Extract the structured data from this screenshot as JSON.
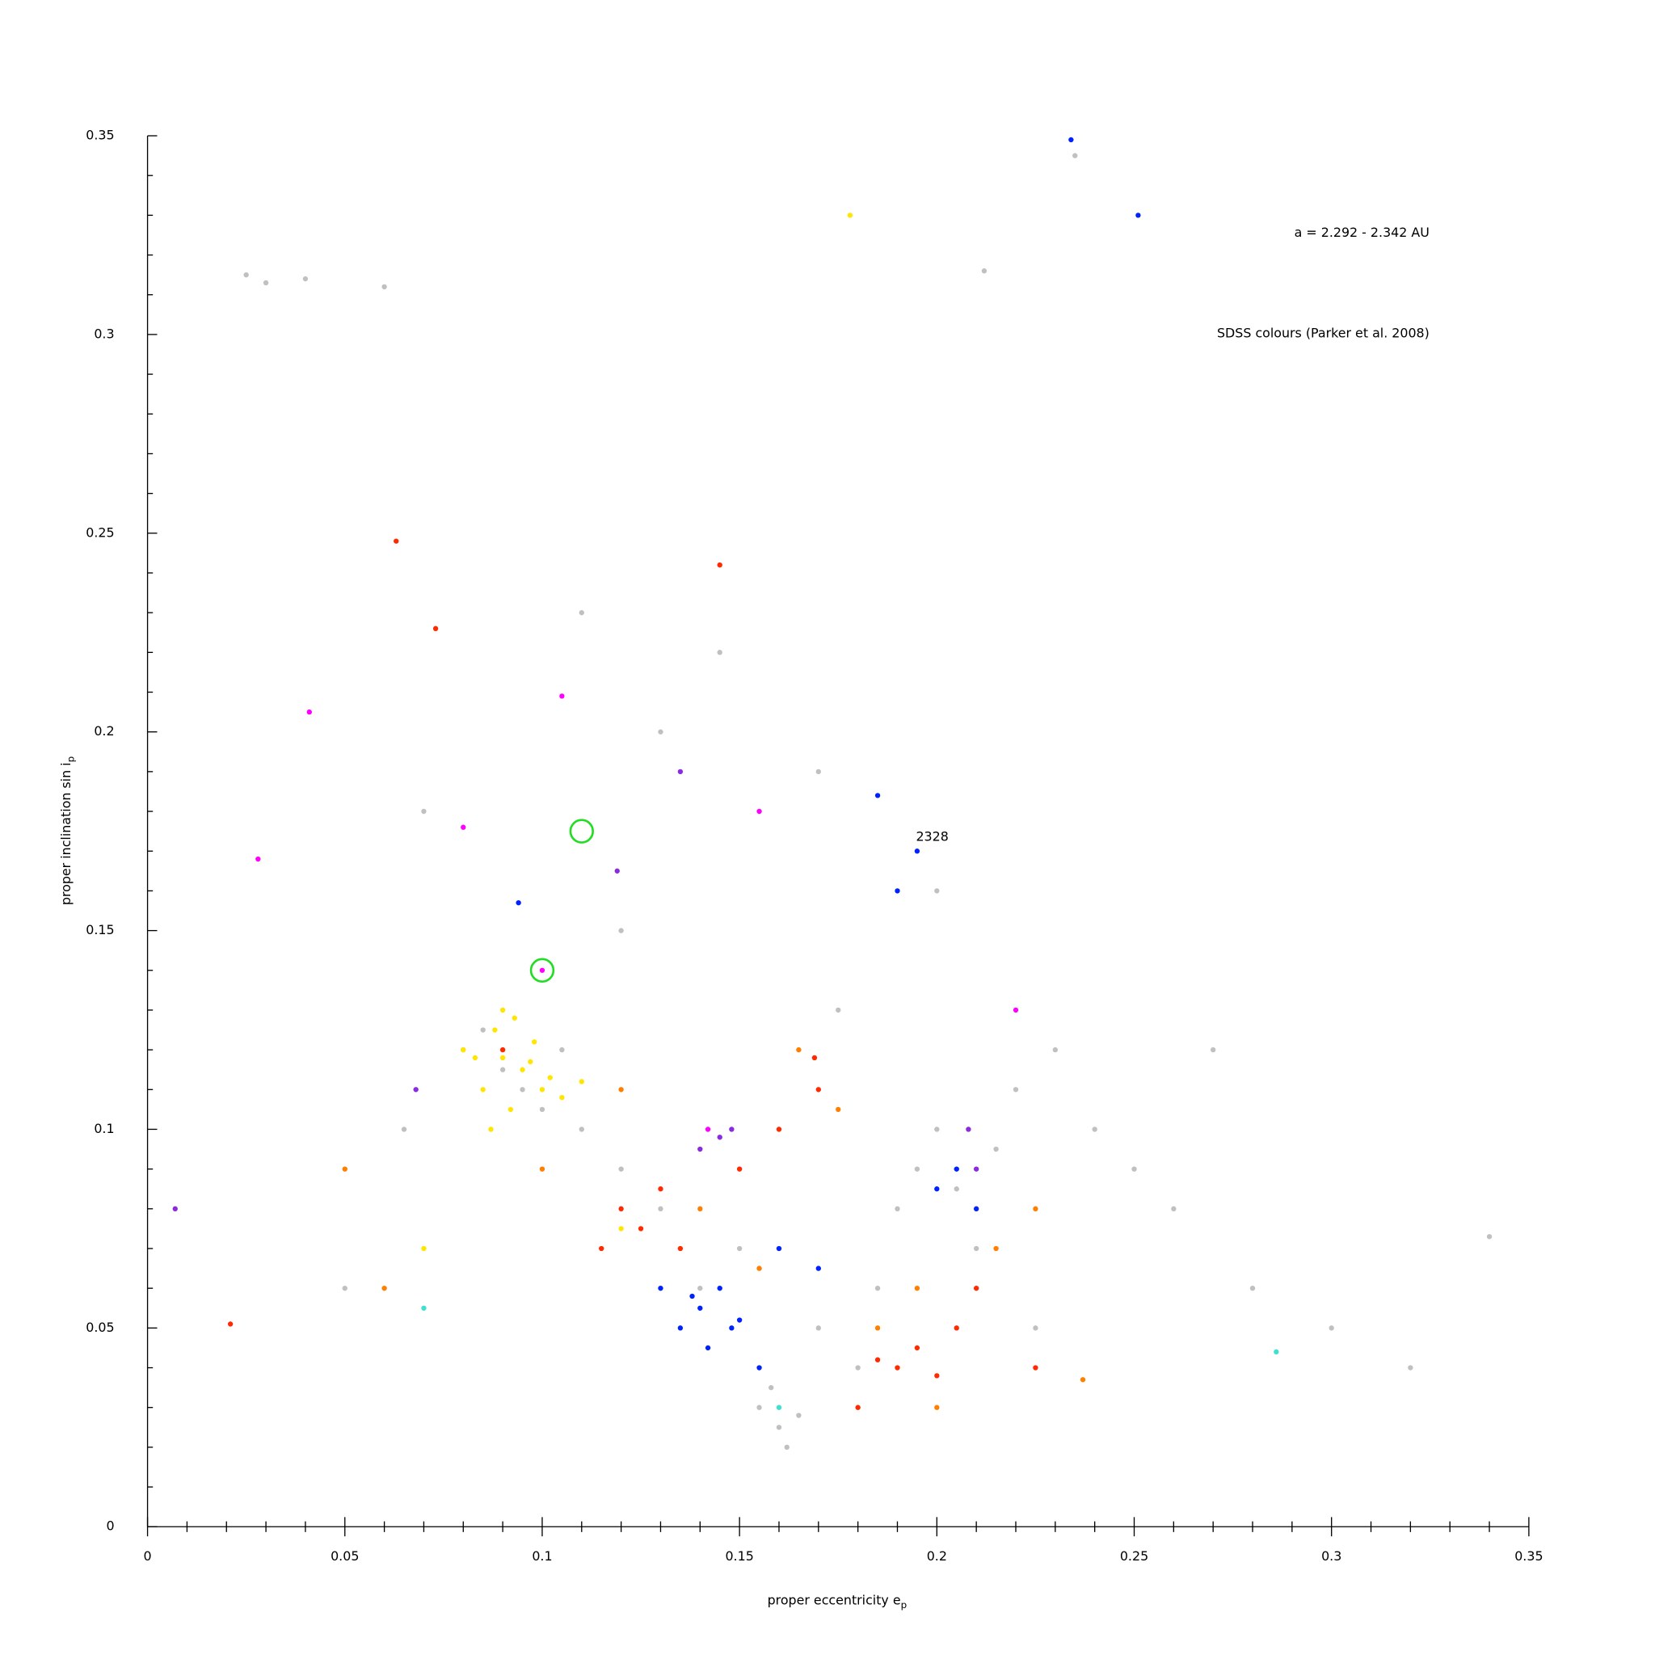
{
  "chart_data": {
    "type": "scatter",
    "annotations": [
      "a = 2.292 - 2.342 AU",
      "SDSS colours (Parker et al. 2008)",
      "2328"
    ],
    "xlabel": "proper eccentricity e",
    "xlabel_sub": "p",
    "ylabel": "proper inclination sin i",
    "ylabel_sub": "p",
    "xlim": [
      0,
      0.35
    ],
    "ylim": [
      0,
      0.35
    ],
    "xticks": [
      0,
      0.05,
      0.1,
      0.15,
      0.2,
      0.25,
      0.3,
      0.35
    ],
    "yticks": [
      0,
      0.05,
      0.1,
      0.15,
      0.2,
      0.25,
      0.3,
      0.35
    ],
    "xticks_minor": [
      0.01,
      0.02,
      0.03,
      0.04,
      0.06,
      0.07,
      0.08,
      0.09,
      0.11,
      0.12,
      0.13,
      0.14,
      0.16,
      0.17,
      0.18,
      0.19,
      0.21,
      0.22,
      0.23,
      0.24,
      0.26,
      0.27,
      0.28,
      0.29,
      0.31,
      0.32,
      0.33,
      0.34
    ],
    "yticks_minor": [
      0.01,
      0.02,
      0.03,
      0.04,
      0.06,
      0.07,
      0.08,
      0.09,
      0.11,
      0.12,
      0.13,
      0.14,
      0.16,
      0.17,
      0.18,
      0.19,
      0.21,
      0.22,
      0.23,
      0.24,
      0.26,
      0.27,
      0.28,
      0.29,
      0.31,
      0.32,
      0.33,
      0.34
    ],
    "series": [
      {
        "color": "#c0c0c0",
        "x": [
          0.025,
          0.03,
          0.04,
          0.06,
          0.08,
          0.09,
          0.085,
          0.095,
          0.1,
          0.105,
          0.11,
          0.12,
          0.13,
          0.14,
          0.15,
          0.155,
          0.16,
          0.162,
          0.165,
          0.158,
          0.17,
          0.18,
          0.185,
          0.19,
          0.195,
          0.2,
          0.205,
          0.21,
          0.215,
          0.22,
          0.23,
          0.24,
          0.25,
          0.26,
          0.28,
          0.3,
          0.32,
          0.34,
          0.212,
          0.13,
          0.17,
          0.235,
          0.05,
          0.07,
          0.12,
          0.145,
          0.175,
          0.2,
          0.225,
          0.11,
          0.065,
          0.27
        ],
        "values": [
          0.315,
          0.313,
          0.314,
          0.312,
          0.12,
          0.115,
          0.125,
          0.11,
          0.105,
          0.12,
          0.1,
          0.09,
          0.08,
          0.06,
          0.07,
          0.03,
          0.025,
          0.02,
          0.028,
          0.035,
          0.05,
          0.04,
          0.06,
          0.08,
          0.09,
          0.1,
          0.085,
          0.07,
          0.095,
          0.11,
          0.12,
          0.1,
          0.09,
          0.08,
          0.06,
          0.05,
          0.04,
          0.073,
          0.316,
          0.2,
          0.19,
          0.345,
          0.06,
          0.18,
          0.15,
          0.22,
          0.13,
          0.16,
          0.05,
          0.23,
          0.1,
          0.12
        ]
      },
      {
        "color": "#ffe600",
        "x": [
          0.08,
          0.085,
          0.088,
          0.09,
          0.092,
          0.095,
          0.098,
          0.1,
          0.102,
          0.105,
          0.09,
          0.087,
          0.093,
          0.097,
          0.11,
          0.083,
          0.12,
          0.07,
          0.178
        ],
        "values": [
          0.12,
          0.11,
          0.125,
          0.118,
          0.105,
          0.115,
          0.122,
          0.11,
          0.113,
          0.108,
          0.13,
          0.1,
          0.128,
          0.117,
          0.112,
          0.118,
          0.075,
          0.07,
          0.33
        ]
      },
      {
        "color": "#ff7f00",
        "x": [
          0.06,
          0.1,
          0.14,
          0.165,
          0.185,
          0.2,
          0.215,
          0.225,
          0.237,
          0.12,
          0.05,
          0.155,
          0.175,
          0.195
        ],
        "values": [
          0.06,
          0.09,
          0.08,
          0.12,
          0.05,
          0.03,
          0.07,
          0.08,
          0.037,
          0.11,
          0.09,
          0.065,
          0.105,
          0.06
        ]
      },
      {
        "color": "#ff2a00",
        "x": [
          0.063,
          0.073,
          0.12,
          0.125,
          0.13,
          0.115,
          0.19,
          0.195,
          0.2,
          0.185,
          0.205,
          0.18,
          0.21,
          0.135,
          0.17,
          0.09,
          0.15,
          0.16,
          0.225,
          0.145,
          0.021,
          0.169
        ],
        "values": [
          0.248,
          0.226,
          0.08,
          0.075,
          0.085,
          0.07,
          0.04,
          0.045,
          0.038,
          0.042,
          0.05,
          0.03,
          0.06,
          0.07,
          0.11,
          0.12,
          0.09,
          0.1,
          0.04,
          0.242,
          0.051,
          0.118
        ]
      },
      {
        "color": "#0022ff",
        "x": [
          0.135,
          0.14,
          0.142,
          0.145,
          0.148,
          0.15,
          0.155,
          0.16,
          0.138,
          0.2,
          0.205,
          0.21,
          0.195,
          0.19,
          0.185,
          0.094,
          0.234,
          0.251,
          0.17,
          0.13
        ],
        "values": [
          0.05,
          0.055,
          0.045,
          0.06,
          0.05,
          0.052,
          0.04,
          0.07,
          0.058,
          0.085,
          0.09,
          0.08,
          0.17,
          0.16,
          0.184,
          0.157,
          0.349,
          0.33,
          0.065,
          0.06
        ]
      },
      {
        "color": "#ff00ff",
        "x": [
          0.028,
          0.041,
          0.08,
          0.142,
          0.155,
          0.105,
          0.22,
          0.1
        ],
        "values": [
          0.168,
          0.205,
          0.176,
          0.1,
          0.18,
          0.209,
          0.13,
          0.14
        ]
      },
      {
        "color": "#8a2be2",
        "x": [
          0.145,
          0.148,
          0.14,
          0.135,
          0.21,
          0.208,
          0.119,
          0.007,
          0.068
        ],
        "values": [
          0.098,
          0.1,
          0.095,
          0.19,
          0.09,
          0.1,
          0.165,
          0.08,
          0.11
        ]
      },
      {
        "color": "#3fe0d0",
        "x": [
          0.286,
          0.07,
          0.16
        ],
        "values": [
          0.044,
          0.055,
          0.03
        ]
      }
    ],
    "highlights": {
      "color": "#22dd22",
      "x": [
        0.11,
        0.1
      ],
      "values": [
        0.175,
        0.14
      ]
    }
  }
}
